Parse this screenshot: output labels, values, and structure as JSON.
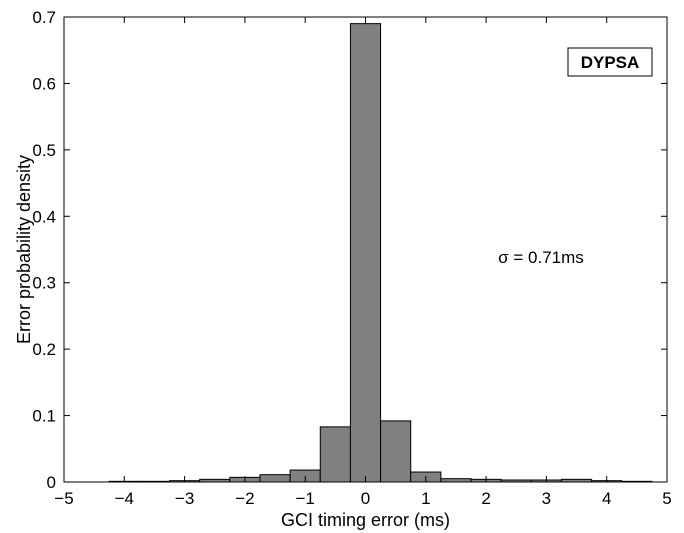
{
  "chart_data": {
    "type": "bar",
    "title": "",
    "xlabel": "GCI timing error (ms)",
    "ylabel": "Error probability density",
    "xlim": [
      -5,
      5
    ],
    "ylim": [
      0,
      0.7
    ],
    "x_ticks": [
      -5,
      -4,
      -3,
      -2,
      -1,
      0,
      1,
      2,
      3,
      4,
      5
    ],
    "x_tick_labels": [
      "−5",
      "−4",
      "−3",
      "−2",
      "−1",
      "0",
      "1",
      "2",
      "3",
      "4",
      "5"
    ],
    "y_ticks": [
      0,
      0.1,
      0.2,
      0.3,
      0.4,
      0.5,
      0.6,
      0.7
    ],
    "y_tick_labels": [
      "0",
      "0.1",
      "0.2",
      "0.3",
      "0.4",
      "0.5",
      "0.6",
      "0.7"
    ],
    "bin_width": 0.5,
    "bin_centers": [
      -4.5,
      -4.0,
      -3.5,
      -3.0,
      -2.5,
      -2.0,
      -1.5,
      -1.0,
      -0.5,
      0.0,
      0.5,
      1.0,
      1.5,
      2.0,
      2.5,
      3.0,
      3.5,
      4.0,
      4.5
    ],
    "values": [
      0.0,
      0.001,
      0.001,
      0.002,
      0.004,
      0.007,
      0.011,
      0.018,
      0.083,
      0.69,
      0.092,
      0.015,
      0.005,
      0.004,
      0.003,
      0.003,
      0.004,
      0.002,
      0.001
    ],
    "bar_color": "#808080",
    "bar_edge_color": "#000000",
    "grid": false,
    "legend": {
      "entries": [
        "DYPSA"
      ],
      "position": "top-right"
    },
    "annotations": [
      {
        "text": "σ = 0.71ms",
        "x": 2.2,
        "y": 0.33
      }
    ]
  }
}
